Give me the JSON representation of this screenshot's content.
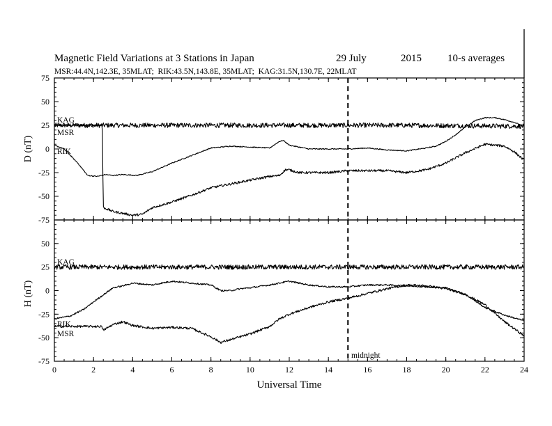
{
  "header": {
    "title": "Magnetic Field Variations at 3 Stations in Japan",
    "date": "29 July",
    "year": "2015",
    "averaging": "10-s averages",
    "stations": "MSR:44.4N,142.3E, 35MLAT;  RIK:43.5N,143.8E, 35MLAT;  KAG:31.5N,130.7E, 22MLAT"
  },
  "annotation": "midnight",
  "chart_data": [
    {
      "type": "line",
      "ylabel": "D (nT)",
      "xlabel": "Universal Time",
      "xlim": [
        0,
        24
      ],
      "ylim": [
        -75,
        75
      ],
      "x_ticks": [
        "0",
        "2",
        "4",
        "6",
        "8",
        "10",
        "12",
        "14",
        "16",
        "18",
        "20",
        "22",
        "24"
      ],
      "y_ticks": [
        "75",
        "50",
        "25",
        "0",
        "-25",
        "-50",
        "-75"
      ],
      "grid": false,
      "vline_x": 15,
      "series": [
        {
          "name": "KAG",
          "noise": 2.5,
          "x": [
            0,
            6,
            12,
            18,
            24
          ],
          "y": [
            25,
            25,
            25,
            25,
            24
          ]
        },
        {
          "name": "MSR",
          "noise": 0.5,
          "x": [
            0,
            0.5,
            1.2,
            1.7,
            2.2,
            2.6,
            3.0,
            3.5,
            4.2,
            5.0,
            6.0,
            7.0,
            8.0,
            9.0,
            10.0,
            11.0,
            11.5,
            11.7,
            12.0,
            12.5,
            13.0,
            14.0,
            15.0,
            16.0,
            17.0,
            18.0,
            19.0,
            19.5,
            20.0,
            20.5,
            21.0,
            21.5,
            22.0,
            22.5,
            23.0,
            23.5,
            24.0
          ],
          "y": [
            4,
            0,
            -15,
            -28,
            -29,
            -27,
            -28,
            -27,
            -28,
            -24,
            -15,
            -7,
            1,
            3,
            2,
            1,
            8,
            9,
            4,
            2,
            0,
            0,
            0,
            1,
            -1,
            -2,
            1,
            3,
            8,
            15,
            23,
            30,
            33,
            33,
            31,
            28,
            24
          ]
        },
        {
          "name": "RIK",
          "noise": 1.2,
          "x": [
            0,
            1,
            2.0,
            2.45,
            2.5,
            3.0,
            3.5,
            4.0,
            4.5,
            5.0,
            6.0,
            7.0,
            8.0,
            9.0,
            10.0,
            11.0,
            11.5,
            11.8,
            12.0,
            12.5,
            13.0,
            14.0,
            15.0,
            16.0,
            17.0,
            18.0,
            19.0,
            20.0,
            21.0,
            22.0,
            23.0,
            23.5,
            24.0
          ],
          "y": [
            25,
            25,
            25,
            25,
            -62,
            -66,
            -68,
            -70,
            -69,
            -62,
            -56,
            -49,
            -41,
            -37,
            -33,
            -29,
            -28,
            -22,
            -22,
            -25,
            -25,
            -25,
            -23,
            -23,
            -23,
            -25,
            -22,
            -15,
            -4,
            5,
            3,
            -3,
            -12
          ]
        }
      ]
    },
    {
      "type": "line",
      "ylabel": "H (nT)",
      "xlabel": "Universal Time",
      "xlim": [
        0,
        24
      ],
      "ylim": [
        -75,
        75
      ],
      "x_ticks": [
        "0",
        "2",
        "4",
        "6",
        "8",
        "10",
        "12",
        "14",
        "16",
        "18",
        "20",
        "22",
        "24"
      ],
      "y_ticks": [
        "75",
        "50",
        "25",
        "0",
        "-25",
        "-50",
        "-75"
      ],
      "grid": false,
      "vline_x": 15,
      "series": [
        {
          "name": "KAG",
          "noise": 2.5,
          "x": [
            0,
            6,
            12,
            18,
            24
          ],
          "y": [
            25,
            25,
            25,
            25,
            25
          ]
        },
        {
          "name": "MSR",
          "noise": 0.8,
          "x": [
            0,
            0.8,
            1.5,
            2.0,
            3.0,
            3.5,
            4.0,
            5.0,
            6.0,
            7.0,
            8.0,
            8.5,
            9.0,
            9.5,
            10.0,
            11.0,
            12.0,
            12.5,
            13.0,
            14.0,
            15.0,
            16.0,
            17.0,
            18.0,
            19.0,
            20.0,
            21.0,
            22.0,
            23.0,
            24.0
          ],
          "y": [
            -30,
            -27,
            -20,
            -12,
            3,
            5,
            8,
            6,
            10,
            8,
            6,
            0,
            0,
            2,
            3,
            6,
            10,
            8,
            6,
            4,
            4,
            6,
            6,
            5,
            4,
            3,
            -4,
            -18,
            -26,
            -32
          ]
        },
        {
          "name": "RIK",
          "noise": 1.2,
          "x": [
            0,
            1.0,
            2.4,
            2.5,
            3.0,
            3.5,
            4.0,
            5.0,
            6.0,
            7.0,
            8.0,
            8.5,
            9.0,
            10.0,
            11.0,
            11.5,
            12.0,
            13.0,
            14.0,
            15.0,
            16.0,
            17.0,
            18.0,
            19.0,
            20.0,
            21.0,
            22.0,
            23.0,
            24.0
          ],
          "y": [
            -38,
            -38,
            -38,
            -42,
            -36,
            -33,
            -37,
            -40,
            -39,
            -40,
            -49,
            -55,
            -52,
            -46,
            -38,
            -30,
            -25,
            -18,
            -12,
            -8,
            -3,
            2,
            6,
            5,
            2,
            -4,
            -15,
            -33,
            -48
          ]
        }
      ]
    }
  ]
}
